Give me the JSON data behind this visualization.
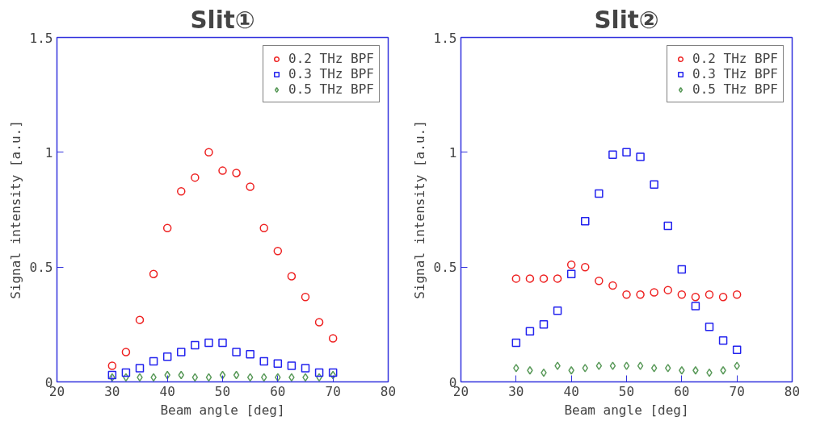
{
  "chart_data": [
    {
      "type": "scatter",
      "title": "Slit①",
      "xlabel": "Beam angle [deg]",
      "ylabel": "Signal intensity [a.u.]",
      "x": [
        30,
        32.5,
        35,
        37.5,
        40,
        42.5,
        45,
        47.5,
        50,
        52.5,
        55,
        57.5,
        60,
        62.5,
        65,
        67.5,
        70
      ],
      "xlim": [
        20,
        80
      ],
      "ylim": [
        0,
        1.5
      ],
      "xticks": [
        20,
        30,
        40,
        50,
        60,
        70,
        80
      ],
      "yticks": [
        0,
        0.5,
        1,
        1.5
      ],
      "grid": false,
      "legend": "top right",
      "series": [
        {
          "name": "0.2 THz BPF",
          "color": "#ee2222",
          "marker": "circle",
          "values": [
            0.07,
            0.13,
            0.27,
            0.47,
            0.67,
            0.83,
            0.89,
            1.0,
            0.92,
            0.91,
            0.85,
            0.67,
            0.57,
            0.46,
            0.37,
            0.26,
            0.19
          ]
        },
        {
          "name": "0.3 THz BPF",
          "color": "#2222ee",
          "marker": "square",
          "values": [
            0.03,
            0.04,
            0.06,
            0.09,
            0.11,
            0.13,
            0.16,
            0.17,
            0.17,
            0.13,
            0.12,
            0.09,
            0.08,
            0.07,
            0.06,
            0.04,
            0.04
          ]
        },
        {
          "name": "0.5 THz BPF",
          "color": "#5a9a5a",
          "marker": "diamond",
          "values": [
            0.02,
            0.02,
            0.02,
            0.02,
            0.03,
            0.03,
            0.02,
            0.02,
            0.03,
            0.03,
            0.02,
            0.02,
            0.02,
            0.02,
            0.02,
            0.02,
            0.03
          ]
        }
      ]
    },
    {
      "type": "scatter",
      "title": "Slit②",
      "xlabel": "Beam angle [deg]",
      "ylabel": "Signal intensity [a.u.]",
      "x": [
        30,
        32.5,
        35,
        37.5,
        40,
        42.5,
        45,
        47.5,
        50,
        52.5,
        55,
        57.5,
        60,
        62.5,
        65,
        67.5,
        70
      ],
      "xlim": [
        20,
        80
      ],
      "ylim": [
        0,
        1.5
      ],
      "xticks": [
        20,
        30,
        40,
        50,
        60,
        70,
        80
      ],
      "yticks": [
        0,
        0.5,
        1,
        1.5
      ],
      "grid": false,
      "legend": "top right",
      "series": [
        {
          "name": "0.2 THz BPF",
          "color": "#ee2222",
          "marker": "circle",
          "values": [
            0.45,
            0.45,
            0.45,
            0.45,
            0.51,
            0.5,
            0.44,
            0.42,
            0.38,
            0.38,
            0.39,
            0.4,
            0.38,
            0.37,
            0.38,
            0.37,
            0.38
          ]
        },
        {
          "name": "0.3 THz BPF",
          "color": "#2222ee",
          "marker": "square",
          "values": [
            0.17,
            0.22,
            0.25,
            0.31,
            0.47,
            0.7,
            0.82,
            0.99,
            1.0,
            0.98,
            0.86,
            0.68,
            0.49,
            0.33,
            0.24,
            0.18,
            0.14
          ]
        },
        {
          "name": "0.5 THz BPF",
          "color": "#5a9a5a",
          "marker": "diamond",
          "values": [
            0.06,
            0.05,
            0.04,
            0.07,
            0.05,
            0.06,
            0.07,
            0.07,
            0.07,
            0.07,
            0.06,
            0.06,
            0.05,
            0.05,
            0.04,
            0.05,
            0.07
          ]
        }
      ]
    }
  ]
}
